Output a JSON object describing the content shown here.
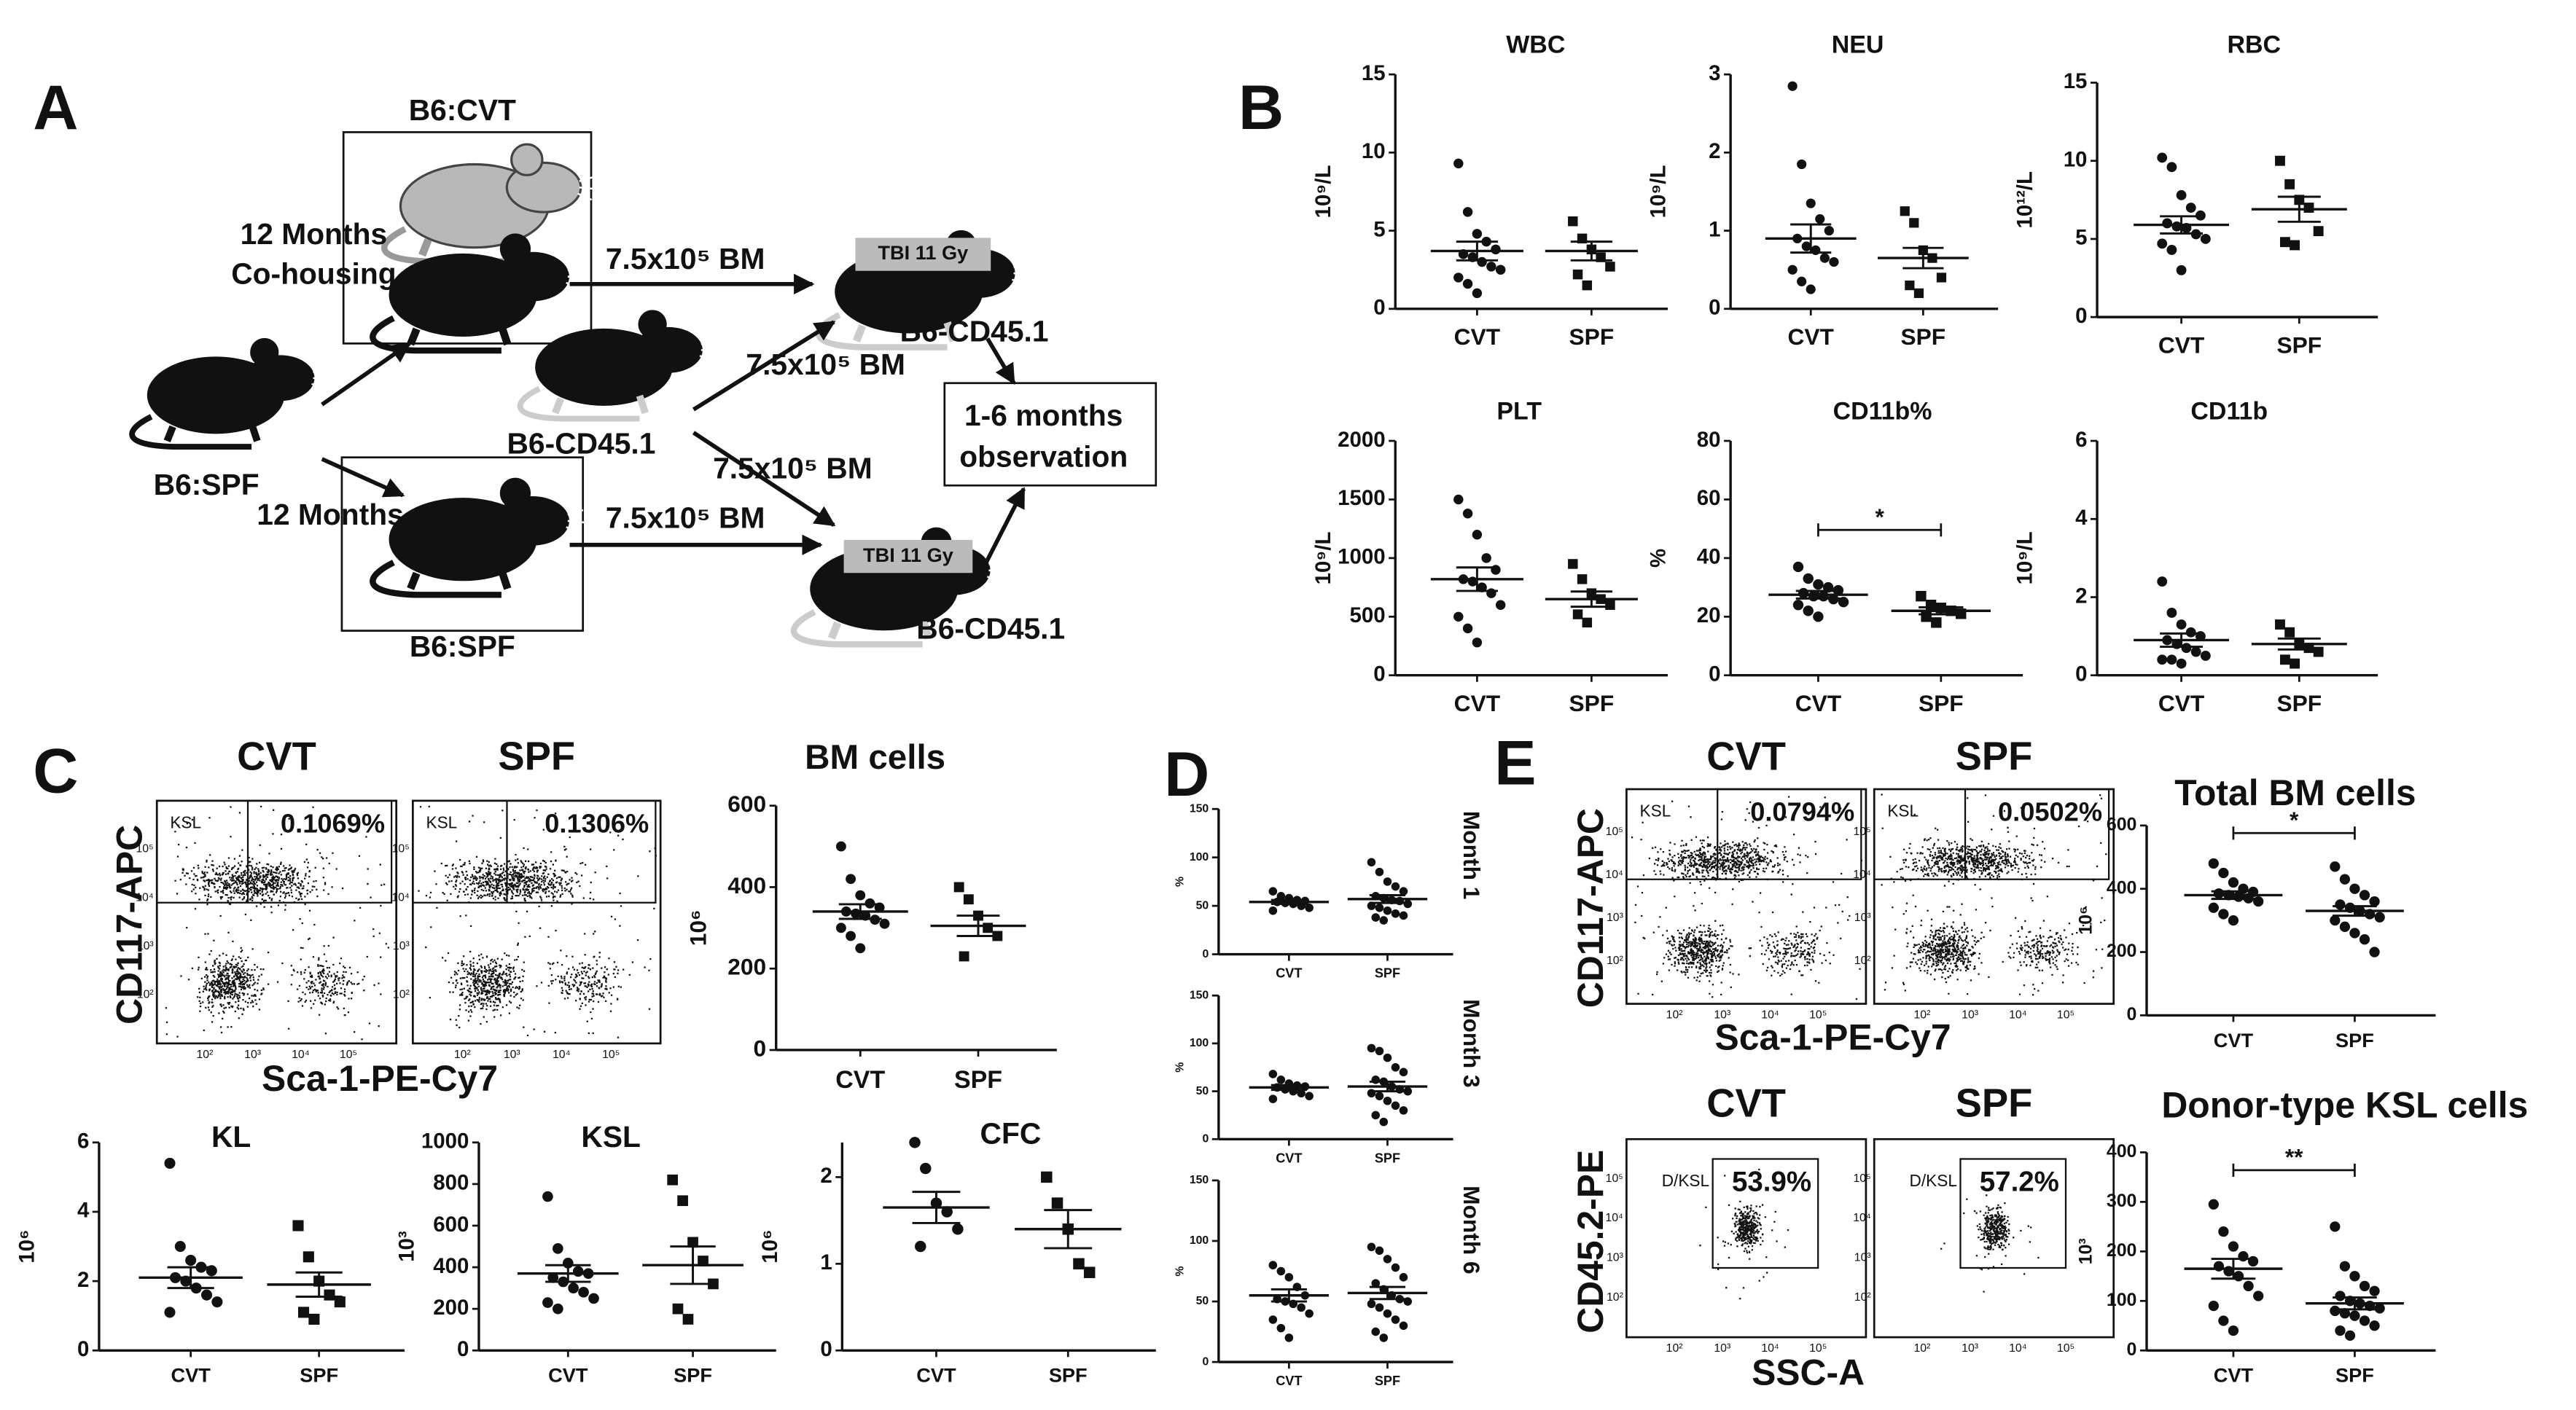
{
  "panels": [
    "A",
    "B",
    "C",
    "D",
    "E"
  ],
  "diagram": {
    "labels": [
      "B6:CVT",
      "12 Months",
      "Co-housing",
      "7.5x10⁵ BM",
      "TBI 11 Gy",
      "B6-CD45.1",
      "7.5x10⁵ BM",
      "B6-CD45.1",
      "1-6 months",
      "observation",
      "7.5x10⁵ BM",
      "B6:SPF",
      "12 Months",
      "7.5x10⁵ BM",
      "TBI 11 Gy",
      "B6-CD45.1",
      "B6:SPF"
    ]
  },
  "flow": [
    {
      "ylabel": "CD117-APC",
      "xlabel": "Sca-1-PE-Cy7",
      "axis_ticks": [
        "10²",
        "10³",
        "10⁴",
        "10⁵"
      ],
      "plots": [
        {
          "title": "CVT",
          "gate": "KSL",
          "percent": "0.1069%"
        },
        {
          "title": "SPF",
          "gate": "KSL",
          "percent": "0.1306%"
        }
      ]
    },
    {
      "ylabel": "CD117-APC",
      "xlabel": "Sca-1-PE-Cy7",
      "axis_ticks": [
        "10²",
        "10³",
        "10⁴",
        "10⁵"
      ],
      "plots": [
        {
          "title": "CVT",
          "gate": "KSL",
          "percent": "0.0794%"
        },
        {
          "title": "SPF",
          "gate": "KSL",
          "percent": "0.0502%"
        }
      ]
    },
    {
      "ylabel": "CD45.2-PE",
      "xlabel": "SSC-A",
      "axis_ticks": [
        "10²",
        "10³",
        "10⁴",
        "10⁵"
      ],
      "plots": [
        {
          "title": "CVT",
          "gate": "D/KSL",
          "percent": "53.9%"
        },
        {
          "title": "SPF",
          "gate": "D/KSL",
          "percent": "57.2%"
        }
      ]
    }
  ],
  "chart_data": [
    {
      "type": "dotplot",
      "title": "WBC",
      "ylabel": "10⁹/L",
      "categories": [
        "CVT",
        "SPF"
      ],
      "markers": [
        "circle",
        "square"
      ],
      "ylim": [
        0,
        15
      ],
      "yticks": [
        0,
        5,
        10,
        15
      ],
      "points": [
        [
          9.3,
          6.2,
          4.8,
          4.3,
          3.8,
          3.5,
          3.3,
          3.0,
          2.7,
          2.5,
          2.0,
          1.6,
          1.0
        ],
        [
          5.6,
          4.5,
          3.8,
          3.3,
          2.7,
          2.2,
          1.5
        ]
      ],
      "means": [
        3.7,
        3.7
      ],
      "sems": [
        0.6,
        0.6
      ]
    },
    {
      "type": "dotplot",
      "title": "NEU",
      "ylabel": "10⁹/L",
      "categories": [
        "CVT",
        "SPF"
      ],
      "markers": [
        "circle",
        "square"
      ],
      "ylim": [
        0,
        3
      ],
      "yticks": [
        0,
        1,
        2,
        3
      ],
      "points": [
        [
          2.85,
          1.85,
          1.35,
          1.15,
          1.0,
          0.9,
          0.8,
          0.75,
          0.65,
          0.6,
          0.5,
          0.35,
          0.25
        ],
        [
          1.25,
          1.1,
          0.75,
          0.65,
          0.4,
          0.3,
          0.2
        ]
      ],
      "means": [
        0.9,
        0.65
      ],
      "sems": [
        0.18,
        0.13
      ]
    },
    {
      "type": "dotplot",
      "title": "RBC",
      "ylabel": "10¹²/L",
      "categories": [
        "CVT",
        "SPF"
      ],
      "markers": [
        "circle",
        "square"
      ],
      "ylim": [
        0,
        15
      ],
      "yticks": [
        0,
        5,
        10,
        15
      ],
      "points": [
        [
          10.2,
          9.6,
          7.8,
          7.0,
          6.5,
          6.0,
          5.8,
          5.7,
          5.3,
          5.0,
          4.7,
          4.3,
          3.0
        ],
        [
          10.0,
          8.5,
          7.5,
          7.0,
          5.5,
          4.8,
          4.6
        ]
      ],
      "means": [
        5.9,
        6.9
      ],
      "sems": [
        0.55,
        0.8
      ]
    },
    {
      "type": "dotplot",
      "title": "PLT",
      "ylabel": "10⁹/L",
      "categories": [
        "CVT",
        "SPF"
      ],
      "markers": [
        "circle",
        "square"
      ],
      "ylim": [
        0,
        2000
      ],
      "yticks": [
        0,
        500,
        1000,
        1500,
        2000
      ],
      "points": [
        [
          1500,
          1380,
          1200,
          1000,
          900,
          820,
          800,
          750,
          700,
          600,
          500,
          400,
          280
        ],
        [
          950,
          820,
          700,
          650,
          600,
          520,
          450
        ]
      ],
      "means": [
        820,
        650
      ],
      "sems": [
        100,
        65
      ]
    },
    {
      "type": "dotplot",
      "title": "CD11b%",
      "ylabel": "%",
      "categories": [
        "CVT",
        "SPF"
      ],
      "markers": [
        "circle",
        "square"
      ],
      "ylim": [
        0,
        80
      ],
      "yticks": [
        0,
        20,
        40,
        60,
        80
      ],
      "points": [
        [
          37,
          33,
          31,
          30,
          29,
          28,
          27,
          27,
          26,
          25,
          24,
          22,
          20
        ],
        [
          27,
          24,
          23,
          22,
          21,
          20,
          18
        ]
      ],
      "means": [
        27.5,
        22
      ],
      "sems": [
        1.3,
        1.2
      ],
      "significance": "*"
    },
    {
      "type": "dotplot",
      "title": "CD11b",
      "ylabel": "10⁹/L",
      "categories": [
        "CVT",
        "SPF"
      ],
      "markers": [
        "circle",
        "square"
      ],
      "ylim": [
        0,
        6
      ],
      "yticks": [
        0,
        2,
        4,
        6
      ],
      "points": [
        [
          2.4,
          1.6,
          1.3,
          1.1,
          1.0,
          0.9,
          0.8,
          0.7,
          0.6,
          0.5,
          0.4,
          0.4,
          0.3
        ],
        [
          1.3,
          1.1,
          0.8,
          0.7,
          0.6,
          0.4,
          0.3
        ]
      ],
      "means": [
        0.9,
        0.8
      ],
      "sems": [
        0.17,
        0.14
      ]
    },
    {
      "type": "dotplot",
      "title": "BM cells",
      "ylabel": "10⁶",
      "categories": [
        "CVT",
        "SPF"
      ],
      "markers": [
        "circle",
        "square"
      ],
      "ylim": [
        0,
        600
      ],
      "yticks": [
        0,
        200,
        400,
        600
      ],
      "points": [
        [
          500,
          420,
          380,
          360,
          350,
          340,
          335,
          330,
          320,
          310,
          300,
          280,
          250
        ],
        [
          400,
          370,
          330,
          300,
          280,
          230
        ]
      ],
      "means": [
        340,
        305
      ],
      "sems": [
        18,
        25
      ]
    },
    {
      "type": "dotplot",
      "title": "KL",
      "ylabel": "10⁶",
      "categories": [
        "CVT",
        "SPF"
      ],
      "markers": [
        "circle",
        "square"
      ],
      "ylim": [
        0,
        6
      ],
      "yticks": [
        0,
        2,
        4,
        6
      ],
      "points": [
        [
          5.4,
          3.0,
          2.6,
          2.4,
          2.3,
          2.1,
          2.0,
          1.8,
          1.6,
          1.4,
          1.1
        ],
        [
          3.6,
          2.7,
          2.0,
          1.6,
          1.4,
          1.1,
          0.9
        ]
      ],
      "means": [
        2.1,
        1.9
      ],
      "sems": [
        0.3,
        0.35
      ]
    },
    {
      "type": "dotplot",
      "title": "KSL",
      "ylabel": "10³",
      "categories": [
        "CVT",
        "SPF"
      ],
      "markers": [
        "circle",
        "square"
      ],
      "ylim": [
        0,
        1000
      ],
      "yticks": [
        0,
        200,
        400,
        600,
        800,
        1000
      ],
      "points": [
        [
          740,
          490,
          420,
          380,
          370,
          350,
          330,
          300,
          280,
          250,
          230,
          200
        ],
        [
          820,
          720,
          520,
          430,
          320,
          200,
          150
        ]
      ],
      "means": [
        370,
        410
      ],
      "sems": [
        40,
        90
      ]
    },
    {
      "type": "dotplot",
      "title": "CFC",
      "ylabel": "10⁶",
      "categories": [
        "CVT",
        "SPF"
      ],
      "markers": [
        "circle",
        "square"
      ],
      "ylim": [
        0,
        2.4
      ],
      "yticks": [
        0,
        1,
        2
      ],
      "points": [
        [
          2.4,
          2.1,
          1.7,
          1.6,
          1.4,
          1.2
        ],
        [
          2.0,
          1.7,
          1.4,
          1.0,
          0.9
        ]
      ],
      "means": [
        1.65,
        1.4
      ],
      "sems": [
        0.18,
        0.22
      ]
    },
    {
      "type": "dotplot",
      "title": "Month 1",
      "ylabel": "%",
      "categories": [
        "CVT",
        "SPF"
      ],
      "markers": [
        "circle",
        "circle"
      ],
      "ylim": [
        0,
        150
      ],
      "yticks": [
        0,
        50,
        100,
        150
      ],
      "points": [
        [
          65,
          60,
          58,
          56,
          55,
          54,
          53,
          52,
          50,
          48,
          45
        ],
        [
          95,
          85,
          75,
          70,
          65,
          60,
          58,
          56,
          55,
          52,
          50,
          48,
          45,
          42,
          40,
          38,
          35
        ]
      ],
      "means": [
        54,
        57
      ],
      "sems": [
        2,
        4
      ]
    },
    {
      "type": "dotplot",
      "title": "Month 3",
      "ylabel": "%",
      "categories": [
        "CVT",
        "SPF"
      ],
      "markers": [
        "circle",
        "circle"
      ],
      "ylim": [
        0,
        150
      ],
      "yticks": [
        0,
        50,
        100,
        150
      ],
      "points": [
        [
          68,
          62,
          58,
          56,
          55,
          54,
          52,
          50,
          48,
          45,
          42
        ],
        [
          95,
          92,
          85,
          75,
          70,
          62,
          60,
          55,
          52,
          50,
          48,
          45,
          40,
          35,
          30,
          25,
          18
        ]
      ],
      "means": [
        54,
        55
      ],
      "sems": [
        2.5,
        5
      ]
    },
    {
      "type": "dotplot",
      "title": "Month 6",
      "ylabel": "%",
      "categories": [
        "CVT",
        "SPF"
      ],
      "markers": [
        "circle",
        "circle"
      ],
      "ylim": [
        0,
        150
      ],
      "yticks": [
        0,
        50,
        100,
        150
      ],
      "points": [
        [
          80,
          75,
          70,
          62,
          55,
          52,
          50,
          48,
          45,
          40,
          35,
          28,
          20
        ],
        [
          95,
          92,
          85,
          78,
          70,
          65,
          60,
          55,
          52,
          50,
          48,
          45,
          40,
          35,
          30,
          25,
          20
        ]
      ],
      "means": [
        55,
        57
      ],
      "sems": [
        5,
        5
      ]
    },
    {
      "type": "dotplot",
      "title": "Total BM cells",
      "ylabel": "10⁶",
      "categories": [
        "CVT",
        "SPF"
      ],
      "markers": [
        "circle",
        "circle"
      ],
      "ylim": [
        0,
        600
      ],
      "yticks": [
        0,
        200,
        400,
        600
      ],
      "points": [
        [
          480,
          450,
          420,
          400,
          390,
          385,
          380,
          375,
          370,
          360,
          340,
          320,
          300
        ],
        [
          470,
          430,
          400,
          380,
          360,
          350,
          340,
          330,
          320,
          310,
          300,
          280,
          260,
          240,
          200
        ]
      ],
      "means": [
        380,
        330
      ],
      "sems": [
        12,
        15
      ],
      "significance": "*"
    },
    {
      "type": "dotplot",
      "title": "Donor-type KSL cells",
      "ylabel": "10³",
      "categories": [
        "CVT",
        "SPF"
      ],
      "markers": [
        "circle",
        "circle"
      ],
      "ylim": [
        0,
        400
      ],
      "yticks": [
        0,
        100,
        200,
        300,
        400
      ],
      "points": [
        [
          295,
          240,
          210,
          190,
          180,
          170,
          160,
          150,
          130,
          110,
          90,
          60,
          40
        ],
        [
          250,
          170,
          150,
          130,
          120,
          110,
          100,
          95,
          90,
          85,
          80,
          75,
          70,
          60,
          50,
          40,
          30
        ]
      ],
      "means": [
        165,
        95
      ],
      "sems": [
        20,
        12
      ],
      "significance": "**"
    }
  ]
}
